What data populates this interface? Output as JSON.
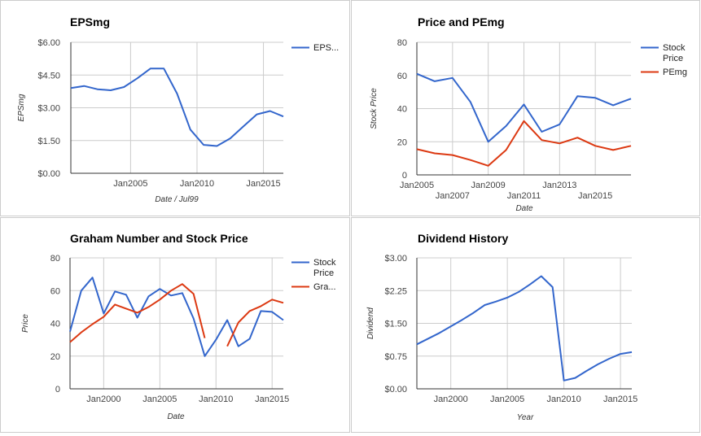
{
  "colors": {
    "blue": "#3366cc",
    "red": "#dc3912",
    "grid": "#cccccc",
    "axis": "#333333",
    "tick": "#444444"
  },
  "chart_data": [
    {
      "type": "line",
      "title": "EPSmg",
      "xlabel": "Date / Jul99",
      "ylabel": "EPSmg",
      "x_tick_labels": [
        "Jan2005",
        "Jan2010",
        "Jan2015"
      ],
      "y_tick_labels": [
        "$0.00",
        "$1.50",
        "$3.00",
        "$4.50",
        "$6.00"
      ],
      "ylim": [
        0,
        6
      ],
      "legend_position": "right",
      "series": [
        {
          "name": "EPS...",
          "color": "blue",
          "x": [
            2000.5,
            2001.5,
            2002.5,
            2003.5,
            2004.5,
            2005.5,
            2006.5,
            2007.5,
            2008.5,
            2009.5,
            2010.5,
            2011.5,
            2012.5,
            2013.5,
            2014.5,
            2015.5,
            2016.5
          ],
          "values": [
            3.9,
            4.0,
            3.85,
            3.8,
            3.95,
            4.35,
            4.8,
            4.8,
            3.65,
            2.0,
            1.3,
            1.25,
            1.6,
            2.15,
            2.7,
            2.85,
            2.6
          ]
        }
      ]
    },
    {
      "type": "line",
      "title": "Price and PEmg",
      "xlabel": "Date",
      "ylabel": "Stock Price",
      "x_tick_labels": [
        "Jan2005",
        "Jan2007",
        "Jan2009",
        "Jan2011",
        "Jan2013",
        "Jan2015"
      ],
      "y_tick_labels": [
        "0",
        "20",
        "40",
        "60",
        "80"
      ],
      "ylim": [
        0,
        80
      ],
      "legend_position": "right",
      "series": [
        {
          "name": "Stock Price",
          "color": "blue",
          "x": [
            2005,
            2006,
            2007,
            2008,
            2009,
            2010,
            2011,
            2012,
            2013,
            2014,
            2015,
            2016,
            2017
          ],
          "values": [
            61,
            56.5,
            58.5,
            44,
            20,
            29.5,
            42.5,
            26,
            30.5,
            47.5,
            46.5,
            42,
            46
          ]
        },
        {
          "name": "PEmg",
          "color": "red",
          "x": [
            2005,
            2006,
            2007,
            2008,
            2009,
            2010,
            2011,
            2012,
            2013,
            2014,
            2015,
            2016,
            2017
          ],
          "values": [
            15.5,
            13,
            12,
            9,
            5.5,
            15,
            32.5,
            21,
            19,
            22.5,
            17.5,
            15,
            17.5
          ]
        }
      ]
    },
    {
      "type": "line",
      "title": "Graham Number and Stock Price",
      "xlabel": "Date",
      "ylabel": "Price",
      "x_tick_labels": [
        "Jan2000",
        "Jan2005",
        "Jan2010",
        "Jan2015"
      ],
      "y_tick_labels": [
        "0",
        "20",
        "40",
        "60",
        "80"
      ],
      "ylim": [
        0,
        80
      ],
      "legend_position": "right",
      "series": [
        {
          "name": "Stock Price",
          "color": "blue",
          "x": [
            1997,
            1998,
            1999,
            2000,
            2001,
            2002,
            2003,
            2004,
            2005,
            2006,
            2007,
            2008,
            2009,
            2010,
            2011,
            2012,
            2013,
            2014,
            2015,
            2016
          ],
          "values": [
            35,
            60,
            68,
            46,
            59.5,
            57.5,
            43.5,
            56.5,
            61,
            57,
            58.5,
            43,
            20,
            30,
            42,
            26,
            30.5,
            47.5,
            47,
            42
          ]
        },
        {
          "name": "Gra...",
          "color": "red",
          "segments": [
            {
              "x": [
                1997,
                1998,
                1999,
                2000,
                2001,
                2002,
                2003,
                2004,
                2005,
                2006,
                2007,
                2008,
                2009
              ],
              "values": [
                28.5,
                34.5,
                39.5,
                44,
                51.5,
                49,
                46.5,
                50,
                54.5,
                60,
                64,
                58,
                31
              ]
            },
            {
              "x": [
                2011,
                2012,
                2013,
                2014,
                2015,
                2016
              ],
              "values": [
                26,
                40.5,
                47.5,
                50.5,
                54.5,
                52.5
              ]
            }
          ]
        }
      ]
    },
    {
      "type": "line",
      "title": "Dividend History",
      "xlabel": "Year",
      "ylabel": "Dividend",
      "x_tick_labels": [
        "Jan2000",
        "Jan2005",
        "Jan2010",
        "Jan2015"
      ],
      "y_tick_labels": [
        "$0.00",
        "$0.75",
        "$1.50",
        "$2.25",
        "$3.00"
      ],
      "ylim": [
        0,
        3
      ],
      "series": [
        {
          "name": "",
          "color": "blue",
          "x": [
            1997,
            1998,
            1999,
            2000,
            2001,
            2002,
            2003,
            2004,
            2005,
            2006,
            2007,
            2008,
            2009,
            2010,
            2011,
            2012,
            2013,
            2014,
            2015,
            2016
          ],
          "values": [
            1.02,
            1.15,
            1.28,
            1.43,
            1.58,
            1.74,
            1.92,
            2.0,
            2.09,
            2.22,
            2.39,
            2.58,
            2.33,
            0.19,
            0.25,
            0.41,
            0.56,
            0.69,
            0.8,
            0.84
          ]
        }
      ]
    }
  ]
}
